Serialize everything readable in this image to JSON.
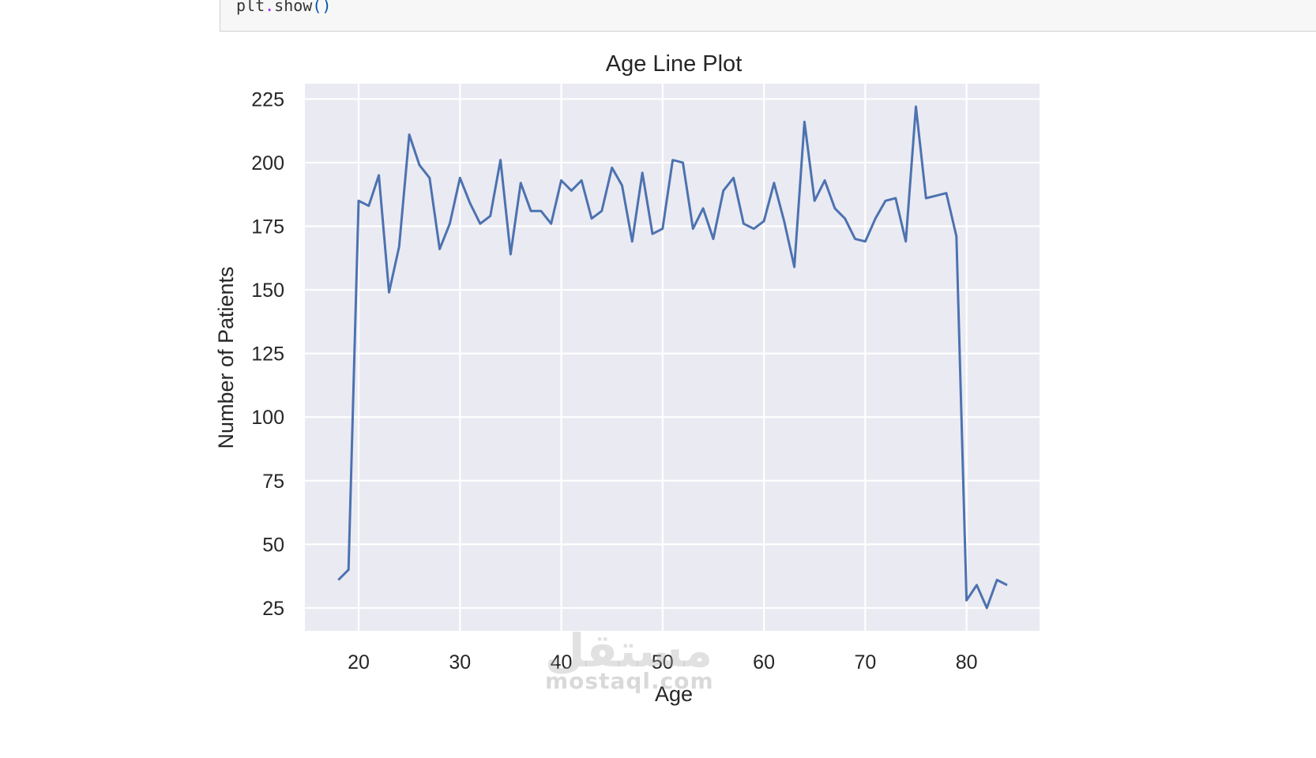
{
  "notebook": {
    "code_line_obj": "plt",
    "code_line_dot": ".",
    "code_line_fn": "show",
    "code_line_parens": "()"
  },
  "chart_data": {
    "type": "line",
    "title": "Age Line Plot",
    "xlabel": "Age",
    "ylabel": "Number of Patients",
    "xlim": [
      14.7,
      87.2
    ],
    "ylim": [
      16,
      231
    ],
    "xticks": [
      20,
      30,
      40,
      50,
      60,
      70,
      80
    ],
    "yticks": [
      25,
      50,
      75,
      100,
      125,
      150,
      175,
      200,
      225
    ],
    "grid": true,
    "background": "#eaeaf2",
    "line_color": "#4c72b0",
    "x": [
      18,
      19,
      20,
      21,
      22,
      23,
      24,
      25,
      26,
      27,
      28,
      29,
      30,
      31,
      32,
      33,
      34,
      35,
      36,
      37,
      38,
      39,
      40,
      41,
      42,
      43,
      44,
      45,
      46,
      47,
      48,
      49,
      50,
      51,
      52,
      53,
      54,
      55,
      56,
      57,
      58,
      59,
      60,
      61,
      62,
      63,
      64,
      65,
      66,
      67,
      68,
      69,
      70,
      71,
      72,
      73,
      74,
      75,
      76,
      77,
      78,
      79,
      80,
      81,
      82,
      83,
      84
    ],
    "y": [
      36,
      40,
      185,
      183,
      195,
      149,
      167,
      211,
      199,
      194,
      166,
      176,
      194,
      184,
      176,
      179,
      201,
      164,
      192,
      181,
      181,
      176,
      193,
      189,
      193,
      178,
      181,
      198,
      191,
      169,
      196,
      172,
      174,
      201,
      200,
      174,
      182,
      170,
      189,
      194,
      176,
      174,
      177,
      192,
      177,
      159,
      216,
      185,
      193,
      182,
      178,
      170,
      169,
      178,
      185,
      186,
      169,
      222,
      186,
      187,
      188,
      171,
      28,
      34,
      25,
      36,
      34
    ]
  },
  "watermark": {
    "arabic": "مستقل",
    "latin": "mostaql.com"
  }
}
